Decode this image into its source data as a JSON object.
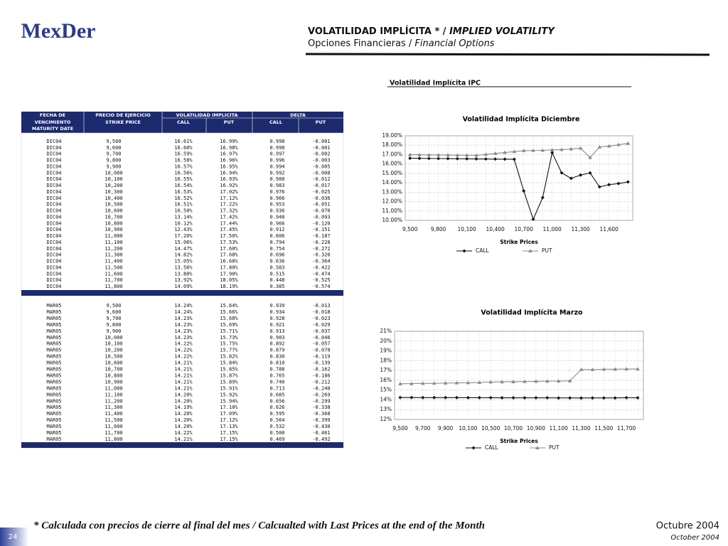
{
  "header": {
    "logo": "MexDer",
    "title": "VOLATILIDAD IMPLÍCITA * / ",
    "title_en": "IMPLIED VOLATILITY",
    "subtitle": "Opciones Financieras / ",
    "subtitle_en": "Financial Options"
  },
  "section_title": "Volatilidad Implícita IPC",
  "table": {
    "header_top": [
      "FECHA DE",
      "PRECIO DE EJERCICIO",
      "VOLATILIDAD IMPLICITA",
      "DELTA"
    ],
    "header_mid": [
      "VENCIMIENTO",
      "STRIKE PRICE",
      "CALL",
      "PUT",
      "CALL",
      "PUT"
    ],
    "header_bottom": [
      "MATURITY DATE"
    ],
    "sections": [
      {
        "rows": [
          [
            "DIC04",
            "9,500",
            "16.61%",
            "16.99%",
            "0.998",
            "-0.001"
          ],
          [
            "DIC04",
            "9,600",
            "16.60%",
            "16.98%",
            "0.998",
            "-0.001"
          ],
          [
            "DIC04",
            "9,700",
            "16.59%",
            "16.97%",
            "0.997",
            "-0.002"
          ],
          [
            "DIC04",
            "9,800",
            "16.58%",
            "16.96%",
            "0.996",
            "-0.003"
          ],
          [
            "DIC04",
            "9,900",
            "16.57%",
            "16.95%",
            "0.994",
            "-0.005"
          ],
          [
            "DIC04",
            "10,000",
            "16.56%",
            "16.94%",
            "0.992",
            "-0.008"
          ],
          [
            "DIC04",
            "10,100",
            "16.55%",
            "16.93%",
            "0.988",
            "-0.012"
          ],
          [
            "DIC04",
            "10,200",
            "16.54%",
            "16.92%",
            "0.983",
            "-0.017"
          ],
          [
            "DIC04",
            "10,300",
            "16.53%",
            "17.02%",
            "0.976",
            "-0.025"
          ],
          [
            "DIC04",
            "10,400",
            "16.52%",
            "17.12%",
            "0.966",
            "-0.036"
          ],
          [
            "DIC04",
            "10,500",
            "16.51%",
            "17.22%",
            "0.953",
            "-0.051"
          ],
          [
            "DIC04",
            "10,600",
            "16.50%",
            "17.32%",
            "0.936",
            "-0.070"
          ],
          [
            "DIC04",
            "10,700",
            "13.14%",
            "17.42%",
            "0.948",
            "-0.093"
          ],
          [
            "DIC04",
            "10,800",
            "10.12%",
            "17.44%",
            "0.966",
            "-0.120"
          ],
          [
            "DIC04",
            "10,900",
            "12.43%",
            "17.45%",
            "0.912",
            "-0.151"
          ],
          [
            "DIC04",
            "11,000",
            "17.20%",
            "17.50%",
            "0.806",
            "-0.187"
          ],
          [
            "DIC04",
            "11,100",
            "15.06%",
            "17.53%",
            "0.794",
            "-0.228"
          ],
          [
            "DIC04",
            "11,200",
            "14.47%",
            "17.60%",
            "0.754",
            "-0.272"
          ],
          [
            "DIC04",
            "11,300",
            "14.82%",
            "17.68%",
            "0.696",
            "-0.320"
          ],
          [
            "DIC04",
            "11,400",
            "15.05%",
            "16.68%",
            "0.636",
            "-0.364"
          ],
          [
            "DIC04",
            "11,500",
            "13.56%",
            "17.80%",
            "0.583",
            "-0.422"
          ],
          [
            "DIC04",
            "11,600",
            "13.80%",
            "17.90%",
            "0.515",
            "-0.474"
          ],
          [
            "DIC04",
            "11,700",
            "13.92%",
            "18.05%",
            "0.448",
            "-0.525"
          ],
          [
            "DIC04",
            "11,800",
            "14.09%",
            "18.19%",
            "0.385",
            "-0.574"
          ]
        ]
      },
      {
        "rows": [
          [
            "MAR05",
            "9,500",
            "14.24%",
            "15.64%",
            "0.939",
            "-0.013"
          ],
          [
            "MAR05",
            "9,600",
            "14.24%",
            "15.66%",
            "0.934",
            "-0.018"
          ],
          [
            "MAR05",
            "9,700",
            "14.23%",
            "15.68%",
            "0.928",
            "-0.023"
          ],
          [
            "MAR05",
            "9,800",
            "14.23%",
            "15.69%",
            "0.921",
            "-0.029"
          ],
          [
            "MAR05",
            "9,900",
            "14.23%",
            "15.71%",
            "0.913",
            "-0.037"
          ],
          [
            "MAR05",
            "10,000",
            "14.23%",
            "15.73%",
            "0.903",
            "-0.046"
          ],
          [
            "MAR05",
            "10,100",
            "14.22%",
            "15.75%",
            "0.892",
            "-0.057"
          ],
          [
            "MAR05",
            "10,200",
            "14.22%",
            "15.77%",
            "0.879",
            "-0.070"
          ],
          [
            "MAR05",
            "10,500",
            "14.22%",
            "15.82%",
            "0.830",
            "-0.119"
          ],
          [
            "MAR05",
            "10,600",
            "14.21%",
            "15.84%",
            "0.810",
            "-0.139"
          ],
          [
            "MAR05",
            "10,700",
            "14.21%",
            "15.85%",
            "0.788",
            "-0.162"
          ],
          [
            "MAR05",
            "10,800",
            "14.21%",
            "15.87%",
            "0.765",
            "-0.186"
          ],
          [
            "MAR05",
            "10,900",
            "14.21%",
            "15.89%",
            "0.740",
            "-0.212"
          ],
          [
            "MAR05",
            "11,000",
            "14.21%",
            "15.91%",
            "0.713",
            "-0.240"
          ],
          [
            "MAR05",
            "11,100",
            "14.20%",
            "15.92%",
            "0.685",
            "-0.269"
          ],
          [
            "MAR05",
            "11,200",
            "14.20%",
            "15.94%",
            "0.656",
            "-0.299"
          ],
          [
            "MAR05",
            "11,300",
            "14.19%",
            "17.10%",
            "0.626",
            "-0.338"
          ],
          [
            "MAR05",
            "11,400",
            "14.20%",
            "17.09%",
            "0.595",
            "-0.368"
          ],
          [
            "MAR05",
            "11,500",
            "14.20%",
            "17.12%",
            "0.564",
            "-0.399"
          ],
          [
            "MAR05",
            "11,600",
            "14.20%",
            "17.13%",
            "0.532",
            "-0.430"
          ],
          [
            "MAR05",
            "11,700",
            "14.22%",
            "17.15%",
            "0.500",
            "-0.461"
          ],
          [
            "MAR05",
            "11,800",
            "14.21%",
            "17.15%",
            "0.469",
            "-0.492"
          ]
        ]
      }
    ]
  },
  "chart_data": [
    {
      "type": "line",
      "title": "Volatilidad Implícita  Diciembre",
      "x_label": "Strike Prices",
      "categories": [
        "9,500",
        null,
        null,
        "9,800",
        null,
        null,
        "10,100",
        null,
        null,
        "10,400",
        null,
        null,
        "10,700",
        null,
        null,
        "11,000",
        null,
        null,
        "11,300",
        null,
        null,
        "11,600",
        null,
        null
      ],
      "series": [
        {
          "name": "CALL",
          "color": "#111111",
          "marker": "diamond",
          "values": [
            16.61,
            16.6,
            16.59,
            16.58,
            16.57,
            16.56,
            16.55,
            16.54,
            16.53,
            16.52,
            16.51,
            16.5,
            13.14,
            10.12,
            12.43,
            17.2,
            15.06,
            14.47,
            14.82,
            15.05,
            13.56,
            13.8,
            13.92,
            14.09
          ]
        },
        {
          "name": "PUT",
          "color": "#8a8a8a",
          "marker": "triangle",
          "values": [
            16.99,
            16.98,
            16.97,
            16.96,
            16.95,
            16.94,
            16.93,
            16.92,
            17.02,
            17.12,
            17.22,
            17.32,
            17.42,
            17.44,
            17.45,
            17.5,
            17.53,
            17.6,
            17.68,
            16.68,
            17.8,
            17.9,
            18.05,
            18.19
          ]
        }
      ],
      "ylim": [
        10,
        19
      ],
      "yticks": [
        {
          "value": 10,
          "label": "10.00%"
        },
        {
          "value": 11,
          "label": "11.00%"
        },
        {
          "value": 12,
          "label": "12.00%"
        },
        {
          "value": 13,
          "label": "13.00%"
        },
        {
          "value": 14,
          "label": "14.00%"
        },
        {
          "value": 15,
          "label": "15.00%"
        },
        {
          "value": 16,
          "label": "16.00%"
        },
        {
          "value": 17,
          "label": "17.00%"
        },
        {
          "value": 18,
          "label": "18.00%"
        },
        {
          "value": 19,
          "label": "19.00%"
        }
      ],
      "grid": true
    },
    {
      "type": "line",
      "title": "Volatilidad Implícita  Marzo",
      "x_label": "Strike Prices",
      "categories": [
        "9,500",
        null,
        "9,700",
        null,
        "9,900",
        null,
        "10,100",
        null,
        "10,500",
        null,
        "10,700",
        null,
        "10,900",
        null,
        "11,100",
        null,
        "11,300",
        null,
        "11,500",
        null,
        "11,700",
        null
      ],
      "series": [
        {
          "name": "CALL",
          "color": "#111111",
          "marker": "diamond",
          "values": [
            14.24,
            14.24,
            14.23,
            14.23,
            14.23,
            14.23,
            14.22,
            14.22,
            14.22,
            14.21,
            14.21,
            14.21,
            14.21,
            14.21,
            14.2,
            14.2,
            14.19,
            14.2,
            14.2,
            14.2,
            14.22,
            14.21
          ]
        },
        {
          "name": "PUT",
          "color": "#8a8a8a",
          "marker": "triangle",
          "values": [
            15.64,
            15.66,
            15.68,
            15.69,
            15.71,
            15.73,
            15.75,
            15.77,
            15.82,
            15.84,
            15.85,
            15.87,
            15.89,
            15.91,
            15.92,
            15.94,
            17.1,
            17.09,
            17.12,
            17.13,
            17.15,
            17.15
          ]
        }
      ],
      "ylim": [
        12,
        21
      ],
      "yticks": [
        {
          "value": 12,
          "label": "12%"
        },
        {
          "value": 13,
          "label": "13%"
        },
        {
          "value": 14,
          "label": "14%"
        },
        {
          "value": 15,
          "label": "15%"
        },
        {
          "value": 16,
          "label": "16%"
        },
        {
          "value": 17,
          "label": "17%"
        },
        {
          "value": 18,
          "label": "18%"
        },
        {
          "value": 19,
          "label": "19%"
        },
        {
          "value": 20,
          "label": "20%"
        },
        {
          "value": 21,
          "label": "21%"
        }
      ],
      "grid": true
    }
  ],
  "footer": {
    "note": "* Calculada con precios de cierre al final del mes / Calcualted with Last Prices at the end of the Month",
    "date": "Octubre 2004",
    "date_en": "October 2004",
    "page": "24"
  }
}
